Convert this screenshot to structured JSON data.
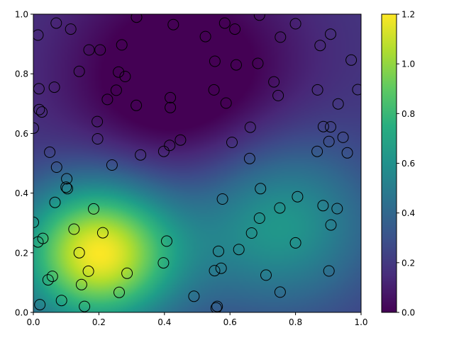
{
  "chart_data": {
    "type": "heatmap",
    "title": "",
    "xlabel": "",
    "ylabel": "",
    "xlim": [
      0,
      1
    ],
    "ylim": [
      0,
      1
    ],
    "x_ticks": [
      "0.0",
      "0.2",
      "0.4",
      "0.6",
      "0.8",
      "1.0"
    ],
    "y_ticks": [
      "0.0",
      "0.2",
      "0.4",
      "0.6",
      "0.8",
      "1.0"
    ],
    "colormap": "viridis",
    "colorbar": {
      "range": [
        0,
        1.2
      ],
      "ticks": [
        "0.0",
        "0.2",
        "0.4",
        "0.6",
        "0.8",
        "1.0",
        "1.2"
      ]
    },
    "field_bumps": [
      {
        "x": 0.2,
        "y": 0.2,
        "amp": 1.0,
        "sigma": 0.17
      },
      {
        "x": 0.75,
        "y": 0.3,
        "amp": 0.45,
        "sigma": 0.2
      },
      {
        "x": 0.45,
        "y": 0.78,
        "amp": -0.32,
        "sigma": 0.25
      }
    ],
    "field_base": 0.2,
    "grid": false,
    "points": [
      [
        0.014,
        0.93
      ],
      [
        0.07,
        0.97
      ],
      [
        0.114,
        0.95
      ],
      [
        0.17,
        0.88
      ],
      [
        0.204,
        0.88
      ],
      [
        0.27,
        0.897
      ],
      [
        0.315,
        0.99
      ],
      [
        0.427,
        0.965
      ],
      [
        0.525,
        0.925
      ],
      [
        0.584,
        0.97
      ],
      [
        0.615,
        0.95
      ],
      [
        0.69,
        0.997
      ],
      [
        0.754,
        0.923
      ],
      [
        0.8,
        0.968
      ],
      [
        0.907,
        0.933
      ],
      [
        0.875,
        0.895
      ],
      [
        0.97,
        0.846
      ],
      [
        0.554,
        0.842
      ],
      [
        0.619,
        0.83
      ],
      [
        0.685,
        0.835
      ],
      [
        0.734,
        0.773
      ],
      [
        0.551,
        0.746
      ],
      [
        0.867,
        0.746
      ],
      [
        0.99,
        0.747
      ],
      [
        0.747,
        0.727
      ],
      [
        0.588,
        0.702
      ],
      [
        0.93,
        0.699
      ],
      [
        0.14,
        0.808
      ],
      [
        0.26,
        0.806
      ],
      [
        0.28,
        0.791
      ],
      [
        0.017,
        0.75
      ],
      [
        0.064,
        0.755
      ],
      [
        0.253,
        0.745
      ],
      [
        0.226,
        0.714
      ],
      [
        0.314,
        0.694
      ],
      [
        0.418,
        0.72
      ],
      [
        0.418,
        0.687
      ],
      [
        0.018,
        0.68
      ],
      [
        0.026,
        0.672
      ],
      [
        0.195,
        0.64
      ],
      [
        0.0,
        0.618
      ],
      [
        0.662,
        0.621
      ],
      [
        0.885,
        0.623
      ],
      [
        0.907,
        0.622
      ],
      [
        0.945,
        0.587
      ],
      [
        0.902,
        0.573
      ],
      [
        0.606,
        0.57
      ],
      [
        0.449,
        0.578
      ],
      [
        0.416,
        0.56
      ],
      [
        0.196,
        0.582
      ],
      [
        0.398,
        0.54
      ],
      [
        0.05,
        0.537
      ],
      [
        0.866,
        0.54
      ],
      [
        0.958,
        0.535
      ],
      [
        0.327,
        0.528
      ],
      [
        0.66,
        0.516
      ],
      [
        0.24,
        0.494
      ],
      [
        0.071,
        0.487
      ],
      [
        0.102,
        0.448
      ],
      [
        0.1,
        0.42
      ],
      [
        0.104,
        0.415
      ],
      [
        0.693,
        0.415
      ],
      [
        0.806,
        0.388
      ],
      [
        0.577,
        0.38
      ],
      [
        0.066,
        0.369
      ],
      [
        0.184,
        0.347
      ],
      [
        0.884,
        0.358
      ],
      [
        0.927,
        0.348
      ],
      [
        0.752,
        0.35
      ],
      [
        0.0,
        0.302
      ],
      [
        0.69,
        0.316
      ],
      [
        0.908,
        0.293
      ],
      [
        0.124,
        0.279
      ],
      [
        0.212,
        0.267
      ],
      [
        0.666,
        0.266
      ],
      [
        0.029,
        0.248
      ],
      [
        0.014,
        0.236
      ],
      [
        0.407,
        0.239
      ],
      [
        0.8,
        0.233
      ],
      [
        0.627,
        0.211
      ],
      [
        0.565,
        0.205
      ],
      [
        0.14,
        0.2
      ],
      [
        0.397,
        0.166
      ],
      [
        0.573,
        0.148
      ],
      [
        0.553,
        0.14
      ],
      [
        0.168,
        0.138
      ],
      [
        0.286,
        0.131
      ],
      [
        0.71,
        0.125
      ],
      [
        0.902,
        0.139
      ],
      [
        0.058,
        0.121
      ],
      [
        0.045,
        0.109
      ],
      [
        0.147,
        0.093
      ],
      [
        0.262,
        0.067
      ],
      [
        0.753,
        0.068
      ],
      [
        0.49,
        0.054
      ],
      [
        0.086,
        0.04
      ],
      [
        0.02,
        0.026
      ],
      [
        0.156,
        0.02
      ],
      [
        0.561,
        0.02
      ],
      [
        0.558,
        0.015
      ]
    ]
  }
}
